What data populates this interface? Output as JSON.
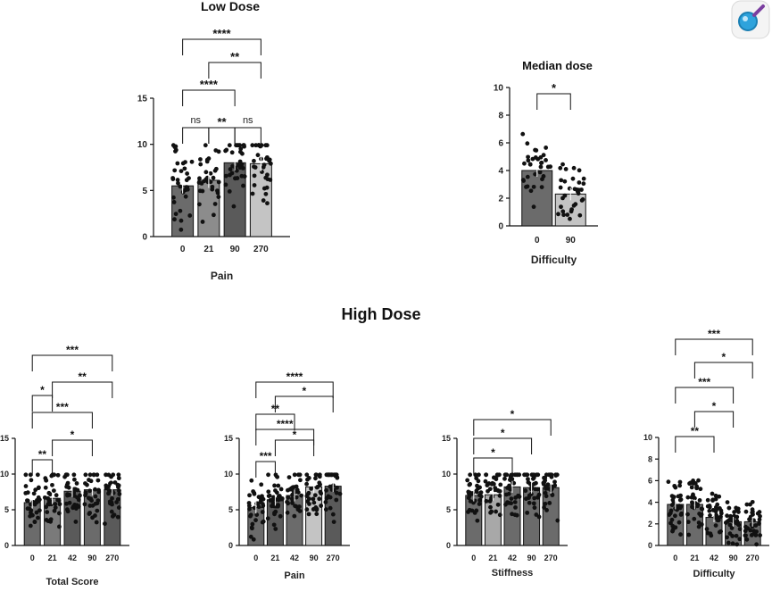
{
  "figure": {
    "section_titles": {
      "low": "Low Dose",
      "high": "High Dose"
    }
  },
  "chart_data": [
    {
      "type": "bar",
      "title": "Low Dose",
      "xlabel": "Pain",
      "ylim": [
        0,
        15
      ],
      "yticks": [
        0,
        5,
        10,
        15
      ],
      "categories": [
        "0",
        "21",
        "90",
        "270"
      ],
      "values": [
        5.5,
        6.1,
        8.0,
        7.9
      ],
      "bar_colors": [
        "#6b6b6b",
        "#8c8c8c",
        "#5a5a5a",
        "#c4c4c4"
      ],
      "comparisons": [
        {
          "from": "0",
          "to": "21",
          "label": "ns"
        },
        {
          "from": "21",
          "to": "90",
          "label": "**"
        },
        {
          "from": "90",
          "to": "270",
          "label": "ns"
        },
        {
          "from": "0",
          "to": "90",
          "label": "****"
        },
        {
          "from": "21",
          "to": "270",
          "label": "**"
        },
        {
          "from": "0",
          "to": "270",
          "label": "****"
        }
      ]
    },
    {
      "type": "bar",
      "title": "Median dose",
      "xlabel": "Difficulty",
      "ylim": [
        0,
        10
      ],
      "yticks": [
        0,
        2,
        4,
        6,
        8,
        10
      ],
      "categories": [
        "0",
        "90"
      ],
      "values": [
        4.0,
        2.3
      ],
      "bar_colors": [
        "#6b6b6b",
        "#c4c4c4"
      ],
      "comparisons": [
        {
          "from": "0",
          "to": "90",
          "label": "*"
        }
      ]
    },
    {
      "type": "bar",
      "title": "",
      "xlabel": "Total Score",
      "ylim": [
        0,
        15
      ],
      "yticks": [
        0,
        5,
        10,
        15
      ],
      "categories": [
        "0",
        "21",
        "42",
        "90",
        "270"
      ],
      "values": [
        6.0,
        6.6,
        7.6,
        7.8,
        7.8
      ],
      "bar_colors": [
        "#6b6b6b",
        "#7a7a7a",
        "#5a5a5a",
        "#6b6b6b",
        "#5a5a5a"
      ],
      "comparisons": [
        {
          "from": "0",
          "to": "21",
          "label": "**"
        },
        {
          "from": "21",
          "to": "90",
          "label": "*"
        },
        {
          "from": "0",
          "to": "90",
          "label": "***"
        },
        {
          "from": "0",
          "to": "21",
          "label": "*"
        },
        {
          "from": "21",
          "to": "270",
          "label": "**"
        },
        {
          "from": "0",
          "to": "270",
          "label": "***"
        }
      ]
    },
    {
      "type": "bar",
      "title": "",
      "xlabel": "Pain",
      "ylim": [
        0,
        15
      ],
      "yticks": [
        0,
        5,
        10,
        15
      ],
      "categories": [
        "0",
        "21",
        "42",
        "90",
        "270"
      ],
      "values": [
        5.3,
        6.4,
        7.0,
        8.2,
        8.3
      ],
      "bar_colors": [
        "#6b6b6b",
        "#5a5a5a",
        "#6b6b6b",
        "#c4c4c4",
        "#5a5a5a"
      ],
      "comparisons": [
        {
          "from": "0",
          "to": "21",
          "label": "***"
        },
        {
          "from": "21",
          "to": "90",
          "label": "*"
        },
        {
          "from": "0",
          "to": "90",
          "label": "****"
        },
        {
          "from": "0",
          "to": "42",
          "label": "**"
        },
        {
          "from": "21",
          "to": "270",
          "label": "*"
        },
        {
          "from": "0",
          "to": "270",
          "label": "****"
        }
      ]
    },
    {
      "type": "bar",
      "title": "",
      "xlabel": "Stiffness",
      "ylim": [
        0,
        15
      ],
      "yticks": [
        0,
        5,
        10,
        15
      ],
      "categories": [
        "0",
        "21",
        "42",
        "90",
        "270"
      ],
      "values": [
        7.0,
        7.1,
        8.2,
        8.1,
        8.1
      ],
      "bar_colors": [
        "#6b6b6b",
        "#a8a8a8",
        "#6b6b6b",
        "#6b6b6b",
        "#6b6b6b"
      ],
      "comparisons": [
        {
          "from": "0",
          "to": "42",
          "label": "*"
        },
        {
          "from": "0",
          "to": "90",
          "label": "*"
        },
        {
          "from": "0",
          "to": "270",
          "label": "*"
        }
      ]
    },
    {
      "type": "bar",
      "title": "",
      "xlabel": "Difficulty",
      "ylim": [
        0,
        10
      ],
      "yticks": [
        0,
        2,
        4,
        6,
        8,
        10
      ],
      "categories": [
        "0",
        "21",
        "42",
        "90",
        "270"
      ],
      "values": [
        3.8,
        3.8,
        2.6,
        2.2,
        2.2
      ],
      "bar_colors": [
        "#6b6b6b",
        "#6b6b6b",
        "#6b6b6b",
        "#6b6b6b",
        "#6b6b6b"
      ],
      "comparisons": [
        {
          "from": "0",
          "to": "42",
          "label": "**"
        },
        {
          "from": "21",
          "to": "90",
          "label": "*"
        },
        {
          "from": "0",
          "to": "90",
          "label": "***"
        },
        {
          "from": "21",
          "to": "270",
          "label": "*"
        },
        {
          "from": "0",
          "to": "270",
          "label": "***"
        }
      ]
    }
  ],
  "overlay": {
    "icon": "search-icon"
  }
}
